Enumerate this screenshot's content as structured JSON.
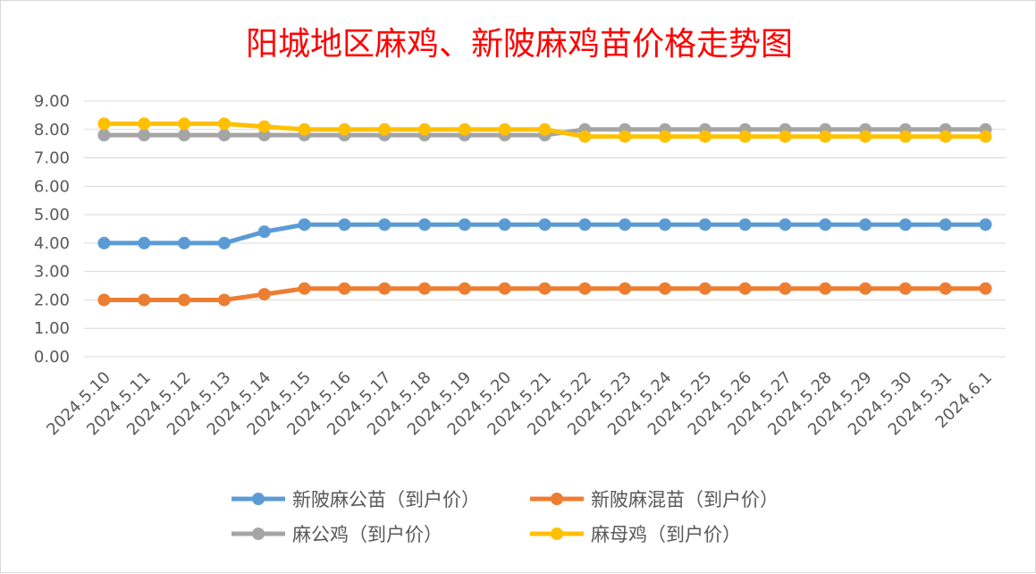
{
  "chart_data": {
    "type": "line",
    "title": "阳城地区麻鸡、新陂麻鸡苗价格走势图",
    "xlabel": "",
    "ylabel": "",
    "ylim": [
      0,
      9
    ],
    "ytick_labels": [
      "0.00",
      "1.00",
      "2.00",
      "3.00",
      "4.00",
      "5.00",
      "6.00",
      "7.00",
      "8.00",
      "9.00"
    ],
    "grid": true,
    "legend_position": "bottom",
    "categories": [
      "2024.5.10",
      "2024.5.11",
      "2024.5.12",
      "2024.5.13",
      "2024.5.14",
      "2024.5.15",
      "2024.5.16",
      "2024.5.17",
      "2024.5.18",
      "2024.5.19",
      "2024.5.20",
      "2024.5.21",
      "2024.5.22",
      "2024.5.23",
      "2024.5.24",
      "2024.5.25",
      "2024.5.26",
      "2024.5.27",
      "2024.5.28",
      "2024.5.29",
      "2024.5.30",
      "2024.5.31",
      "2024.6.1"
    ],
    "series": [
      {
        "name": "新陂麻公苗（到户价）",
        "color": "#5b9bd5",
        "values": [
          4.0,
          4.0,
          4.0,
          4.0,
          4.4,
          4.65,
          4.65,
          4.65,
          4.65,
          4.65,
          4.65,
          4.65,
          4.65,
          4.65,
          4.65,
          4.65,
          4.65,
          4.65,
          4.65,
          4.65,
          4.65,
          4.65,
          4.65
        ]
      },
      {
        "name": "新陂麻混苗（到户价）",
        "color": "#ed7d31",
        "values": [
          2.0,
          2.0,
          2.0,
          2.0,
          2.2,
          2.4,
          2.4,
          2.4,
          2.4,
          2.4,
          2.4,
          2.4,
          2.4,
          2.4,
          2.4,
          2.4,
          2.4,
          2.4,
          2.4,
          2.4,
          2.4,
          2.4,
          2.4
        ]
      },
      {
        "name": "麻公鸡（到户价）",
        "color": "#a5a5a5",
        "values": [
          7.8,
          7.8,
          7.8,
          7.8,
          7.8,
          7.8,
          7.8,
          7.8,
          7.8,
          7.8,
          7.8,
          7.8,
          8.0,
          8.0,
          8.0,
          8.0,
          8.0,
          8.0,
          8.0,
          8.0,
          8.0,
          8.0,
          8.0
        ]
      },
      {
        "name": "麻母鸡（到户价）",
        "color": "#ffc000",
        "values": [
          8.2,
          8.2,
          8.2,
          8.2,
          8.1,
          8.0,
          8.0,
          8.0,
          8.0,
          8.0,
          8.0,
          8.0,
          7.75,
          7.75,
          7.75,
          7.75,
          7.75,
          7.75,
          7.75,
          7.75,
          7.75,
          7.75,
          7.75
        ]
      }
    ]
  }
}
